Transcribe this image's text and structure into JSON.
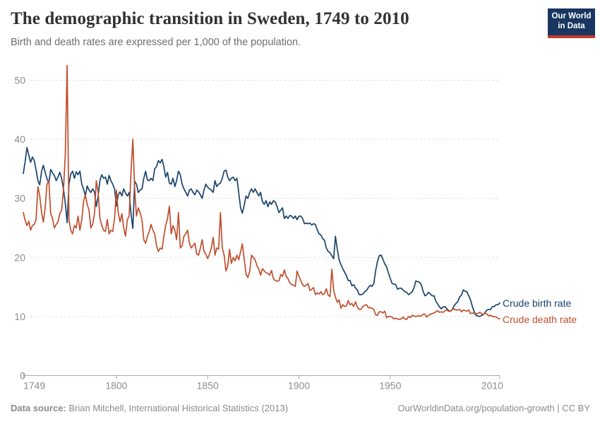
{
  "header": {
    "title": "The demographic transition in Sweden, 1749 to 2010",
    "subtitle": "Birth and death rates are expressed per 1,000 of the population.",
    "logo": {
      "line1": "Our World",
      "line2": "in Data",
      "bg_color": "#18365f",
      "bar_color": "#c5392c"
    }
  },
  "footer": {
    "source_label": "Data source:",
    "source_text": " Brian Mitchell, International Historical Statistics (2013)",
    "link_text": "OurWorldinData.org/population-growth | CC BY"
  },
  "chart_data": {
    "type": "line",
    "title": "The demographic transition in Sweden, 1749 to 2010",
    "subtitle": "Birth and death rates are expressed per 1,000 of the population.",
    "xlabel": "",
    "ylabel": "",
    "x_start": 1749,
    "x_end": 2010,
    "xlim": [
      1749,
      2010
    ],
    "ylim": [
      0,
      50
    ],
    "x_ticks": [
      1749,
      1800,
      1850,
      1900,
      1950,
      2010
    ],
    "y_ticks": [
      0,
      10,
      20,
      30,
      40,
      50
    ],
    "grid": "horizontal-dashed",
    "legend_position": "right-of-line-ends",
    "grid_color": "#dadada",
    "axis_color": "#a9a9a9",
    "tick_label_color": "#8c8c8c",
    "series": [
      {
        "name": "Crude birth rate",
        "color": "#18436b",
        "values": [
          34.2,
          36.2,
          38.6,
          37.3,
          36.1,
          37.0,
          36.4,
          34.8,
          33.0,
          32.3,
          34.6,
          35.6,
          34.4,
          33.3,
          32.6,
          34.9,
          34.3,
          33.9,
          33.0,
          33.6,
          34.4,
          33.4,
          31.6,
          29.2,
          25.9,
          32.4,
          34.1,
          34.6,
          33.4,
          34.5,
          34.0,
          34.6,
          32.4,
          31.6,
          30.4,
          32.1,
          31.4,
          31.0,
          31.6,
          31.1,
          28.6,
          30.4,
          33.1,
          34.0,
          33.4,
          33.6,
          32.4,
          33.9,
          33.0,
          32.4,
          31.6,
          28.7,
          30.6,
          31.1,
          30.4,
          31.6,
          30.9,
          30.4,
          31.0,
          27.5,
          24.9,
          32.9,
          32.4,
          31.0,
          31.4,
          31.6,
          33.4,
          34.6,
          33.1,
          33.0,
          33.4,
          33.0,
          35.0,
          35.4,
          36.4,
          36.0,
          36.6,
          35.4,
          33.6,
          34.4,
          32.6,
          32.4,
          33.4,
          32.0,
          33.0,
          34.6,
          34.0,
          32.4,
          31.6,
          31.0,
          30.4,
          31.4,
          31.6,
          31.0,
          30.6,
          31.4,
          31.1,
          30.6,
          30.0,
          31.4,
          32.4,
          31.9,
          31.6,
          31.4,
          31.0,
          33.0,
          32.0,
          32.4,
          32.6,
          33.4,
          34.6,
          34.8,
          33.6,
          33.0,
          33.4,
          33.6,
          33.0,
          33.4,
          31.0,
          28.4,
          27.5,
          28.8,
          30.4,
          30.0,
          31.0,
          31.6,
          31.0,
          31.6,
          31.0,
          30.4,
          31.0,
          29.4,
          29.0,
          29.6,
          28.6,
          29.4,
          29.0,
          29.6,
          29.4,
          28.6,
          27.6,
          28.0,
          28.4,
          26.6,
          27.0,
          26.6,
          27.1,
          27.0,
          26.6,
          27.0,
          26.4,
          27.0,
          27.0,
          26.6,
          25.7,
          25.8,
          25.7,
          25.8,
          25.5,
          25.7,
          25.6,
          24.7,
          24.0,
          23.8,
          23.2,
          22.9,
          21.6,
          21.0,
          20.8,
          20.3,
          19.8,
          23.6,
          21.4,
          19.6,
          18.8,
          18.1,
          17.5,
          16.9,
          16.1,
          16.1,
          15.2,
          15.4,
          14.8,
          14.5,
          13.7,
          13.7,
          13.8,
          14.2,
          14.4,
          14.9,
          15.3,
          15.1,
          15.6,
          17.7,
          19.3,
          20.3,
          20.4,
          19.7,
          18.9,
          18.4,
          17.4,
          16.5,
          15.6,
          15.5,
          15.4,
          14.6,
          14.8,
          14.8,
          14.5,
          14.2,
          14.1,
          13.7,
          13.9,
          14.2,
          14.8,
          16.0,
          15.9,
          15.8,
          15.4,
          14.3,
          13.5,
          13.7,
          14.1,
          13.8,
          13.5,
          13.5,
          12.6,
          12.1,
          11.6,
          11.3,
          11.6,
          11.7,
          11.3,
          11.0,
          10.9,
          11.2,
          11.8,
          12.2,
          12.5,
          13.3,
          13.6,
          14.5,
          14.3,
          14.2,
          13.5,
          12.8,
          11.7,
          10.8,
          10.2,
          10.1,
          10.0,
          10.2,
          10.3,
          10.7,
          11.1,
          11.2,
          11.2,
          11.7,
          11.7,
          12.0,
          12.0,
          12.3
        ]
      },
      {
        "name": "Crude death rate",
        "color": "#c04e2c",
        "values": [
          27.6,
          26.3,
          25.4,
          26.1,
          24.6,
          25.4,
          25.6,
          26.4,
          32.0,
          30.4,
          27.6,
          26.0,
          28.4,
          32.4,
          32.9,
          27.4,
          26.6,
          25.0,
          25.6,
          26.0,
          27.4,
          28.0,
          31.4,
          37.4,
          52.5,
          26.4,
          24.6,
          24.0,
          25.4,
          25.0,
          27.0,
          24.6,
          26.4,
          29.4,
          30.6,
          29.0,
          28.0,
          25.0,
          25.6,
          27.4,
          33.0,
          31.0,
          26.6,
          25.4,
          24.6,
          24.4,
          26.4,
          24.0,
          24.6,
          24.4,
          26.6,
          31.4,
          27.6,
          26.0,
          27.4,
          25.0,
          23.6,
          26.4,
          27.0,
          34.5,
          40.0,
          31.6,
          27.0,
          28.4,
          27.6,
          26.4,
          23.0,
          22.4,
          23.6,
          24.4,
          25.6,
          24.6,
          24.0,
          22.0,
          21.0,
          21.6,
          21.4,
          23.6,
          25.4,
          26.6,
          28.7,
          24.0,
          25.4,
          24.6,
          23.0,
          27.6,
          21.6,
          22.0,
          23.6,
          24.0,
          24.6,
          22.4,
          21.6,
          22.0,
          22.4,
          20.6,
          20.4,
          21.6,
          23.0,
          21.0,
          20.6,
          19.8,
          20.6,
          21.6,
          23.4,
          20.4,
          21.6,
          21.4,
          27.6,
          21.6,
          20.4,
          17.7,
          18.6,
          21.4,
          19.0,
          20.0,
          19.4,
          20.4,
          19.6,
          21.0,
          22.3,
          19.8,
          17.2,
          16.6,
          17.6,
          20.4,
          20.0,
          19.6,
          18.6,
          18.0,
          17.0,
          18.1,
          17.7,
          17.4,
          17.3,
          17.0,
          17.8,
          16.4,
          16.1,
          16.0,
          16.0,
          17.1,
          16.8,
          17.9,
          16.8,
          16.4,
          15.7,
          15.4,
          15.3,
          15.1,
          17.7,
          16.8,
          16.1,
          15.4,
          15.1,
          15.3,
          15.6,
          14.4,
          14.6,
          14.9,
          13.7,
          14.0,
          13.8,
          14.2,
          13.7,
          13.9,
          14.7,
          13.6,
          13.4,
          18.0,
          14.5,
          13.3,
          12.4,
          12.8,
          11.4,
          12.0,
          11.7,
          11.8,
          12.7,
          12.0,
          12.2,
          11.7,
          12.5,
          11.6,
          11.2,
          11.2,
          11.7,
          11.9,
          12.0,
          11.5,
          11.5,
          11.4,
          11.2,
          10.3,
          10.2,
          10.8,
          10.8,
          10.6,
          10.9,
          9.8,
          10.0,
          10.0,
          9.9,
          9.6,
          9.7,
          9.6,
          9.5,
          9.6,
          9.9,
          9.6,
          9.5,
          10.0,
          9.8,
          10.2,
          10.1,
          10.0,
          10.1,
          10.1,
          10.1,
          10.4,
          10.4,
          9.9,
          10.2,
          10.4,
          10.5,
          10.6,
          10.8,
          11.0,
          10.7,
          10.8,
          10.7,
          11.0,
          11.1,
          10.9,
          10.9,
          11.2,
          11.3,
          11.1,
          11.1,
          11.2,
          10.8,
          11.1,
          11.0,
          10.9,
          11.1,
          10.5,
          10.6,
          10.5,
          10.5,
          10.5,
          10.7,
          10.5,
          10.3,
          10.6,
          10.4,
          10.1,
          10.2,
          10.0,
          10.0,
          9.9,
          9.7,
          9.6
        ]
      }
    ]
  }
}
